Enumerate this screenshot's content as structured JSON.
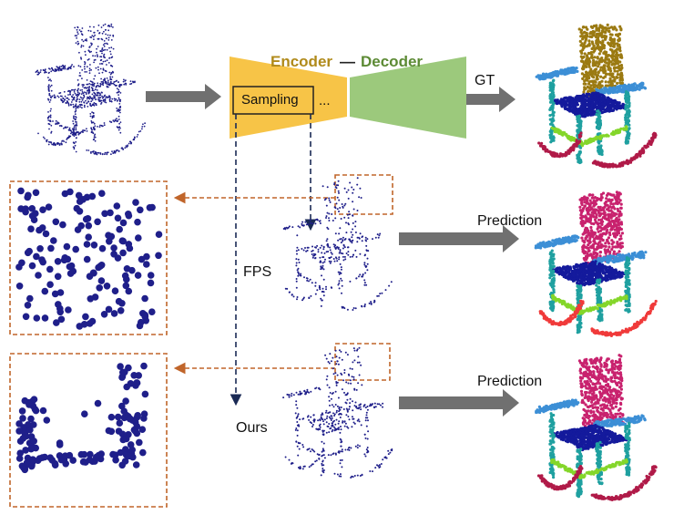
{
  "labels": {
    "encoder": "Encoder",
    "dash": "—",
    "decoder": "Decoder",
    "sampling": "Sampling",
    "ellipsis": "...",
    "gt": "GT",
    "prediction_fps": "Prediction",
    "prediction_ours": "Prediction",
    "fps": "FPS",
    "ours": "Ours"
  },
  "colors": {
    "encoder": "#f7c447",
    "decoder": "#9cc97c",
    "encoder_text": "#b08a1a",
    "decoder_text": "#5c8a34",
    "arrow": "#707070",
    "dashed_orange": "#c0652a",
    "points": "#1f1f8a",
    "chair_back": "#c8226e",
    "chair_back_gt": "#9b7a12",
    "chair_arm": "#3c8fd6",
    "chair_seat": "#141a9c",
    "chair_leg": "#1fa0a0",
    "chair_rung": "#84d62a",
    "chair_rocker": "#b01a48",
    "chair_rocker_fps": "#f03a3a"
  },
  "icons": {
    "input": "rocking-chair-point-cloud",
    "outputs": "segmented-chair-point-cloud"
  }
}
